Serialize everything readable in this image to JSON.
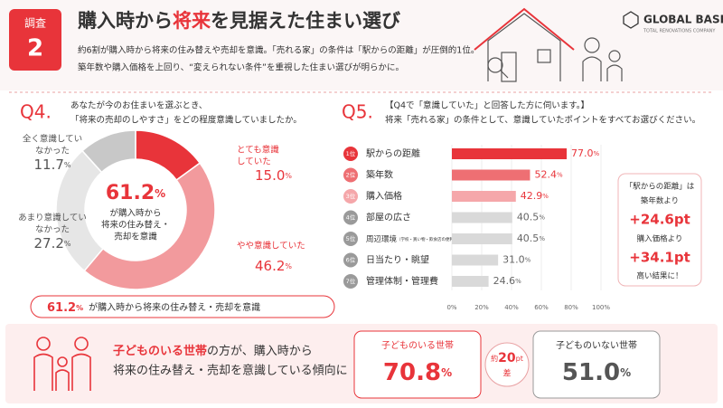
{
  "header": {
    "badge_label": "調査",
    "badge_number": "2",
    "title_parts": [
      "購入時から",
      "将来",
      "を見据えた住まい選び"
    ],
    "lines": [
      "約6割が購入時から将来の住み替えや売却を意識。「売れる家」の条件は「駅からの距離」が圧倒的1位。",
      "築年数や購入価格を上回り、“変えられない条件”を重視した住まい選びが明らかに。"
    ],
    "brand": "GLOBAL BASE",
    "brand_sub": "TOTAL RENOVATIONS COMPANY"
  },
  "chart_data": [
    {
      "type": "pie",
      "question_no": "Q4.",
      "question": [
        "あなたが今のお住まいを選ぶとき、",
        "「将来の売却のしやすさ」をどの程度意識していましたか。"
      ],
      "categories": [
        "とても意識していた",
        "やや意識していた",
        "あまり意識していなかった",
        "全く意識していなかった"
      ],
      "values": [
        15.0,
        46.2,
        27.2,
        11.7
      ],
      "value_labels": [
        "15.0",
        "46.2",
        "27.2",
        "11.7"
      ],
      "colors": [
        "#e8343a",
        "#f29a9d",
        "#e6e6e6",
        "#c8c8c8"
      ],
      "unit": "%",
      "center_value": 61.2,
      "center_text": [
        "が購入時から",
        "将来の住み替え・",
        "売却を意識"
      ],
      "summary_text": "が購入時から将来の住み替え・売却を意識"
    },
    {
      "type": "hbar",
      "question_no": "Q5.",
      "question": [
        "【Q4で「意識していた」と回答した方に伺います。】",
        "将来「売れる家」の条件として、意識していたポイントをすべてお選びください。"
      ],
      "ranks": [
        "1位",
        "2位",
        "3位",
        "4位",
        "5位",
        "6位",
        "7位"
      ],
      "categories": [
        "駅からの距離",
        "築年数",
        "購入価格",
        "部屋の広さ",
        "周辺環境",
        "日当たり・眺望",
        "管理体制・管理費"
      ],
      "category_notes": [
        null,
        null,
        null,
        null,
        "（学校・買い物・飲食店の便利さなど）",
        null,
        null
      ],
      "values": [
        77.0,
        52.4,
        42.9,
        40.5,
        40.5,
        31.0,
        24.6
      ],
      "value_labels": [
        "77.0",
        "52.4",
        "42.9",
        "40.5",
        "40.5",
        "31.0",
        "24.6"
      ],
      "unit": "%",
      "colors": [
        "#e8343a",
        "#ee6f73",
        "#f5a7aa",
        "#d9d9d9",
        "#d9d9d9",
        "#d9d9d9",
        "#d9d9d9"
      ],
      "rank_colors": [
        "#e8343a",
        "#ee6f73",
        "#f5a7aa",
        "#9a9a9a",
        "#9a9a9a",
        "#9a9a9a",
        "#9a9a9a"
      ],
      "xlim": [
        0,
        100
      ],
      "xticks": [
        {
          "value": 0,
          "label": "0%"
        },
        {
          "value": 20,
          "label": "20%"
        },
        {
          "value": 40,
          "label": "40%"
        },
        {
          "value": 60,
          "label": "60%"
        },
        {
          "value": 80,
          "label": "80%"
        },
        {
          "value": 100,
          "label": "100%"
        }
      ],
      "callout": [
        "「駅からの距離」は",
        "築年数より",
        "+24.6pt",
        "購入価格より",
        "+34.1pt",
        "高い結果に！"
      ]
    }
  ],
  "bottom": {
    "lead_highlight": "子どものいる世帯",
    "lead_rest": "の方が、購入時から",
    "lead_line2": "将来の住み替え・売却を意識している傾向に",
    "with_children_label": "子どものいる世帯",
    "with_children_value": "70.8",
    "diff_prefix": "約",
    "diff_value": "20",
    "diff_unit": "pt",
    "diff_suffix": "差",
    "without_children_label": "子どものいない世帯",
    "without_children_value": "51.0",
    "unit": "%"
  }
}
